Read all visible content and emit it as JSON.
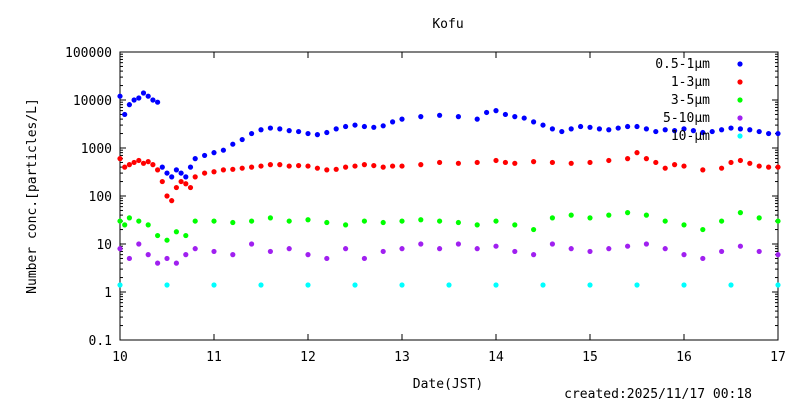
{
  "chart_data": {
    "type": "scatter",
    "title": "Kofu",
    "xlabel": "Date(JST)",
    "ylabel": "Number conc.[particles/L]",
    "x_ticks": [
      "10",
      "11",
      "12",
      "13",
      "14",
      "15",
      "16",
      "17"
    ],
    "y_ticks": [
      "0.1",
      "1",
      "10",
      "100",
      "1000",
      "10000",
      "100000"
    ],
    "xlim": [
      10,
      17
    ],
    "ylim": [
      0.1,
      100000
    ],
    "y_scale": "log",
    "grid": false,
    "legend_position": "top-right",
    "created": "created:2025/11/17 00:18",
    "series": [
      {
        "name": "0.5-1μm",
        "color": "#0000ff",
        "points": [
          [
            10.0,
            12000
          ],
          [
            10.05,
            5000
          ],
          [
            10.1,
            8000
          ],
          [
            10.15,
            10000
          ],
          [
            10.2,
            11000
          ],
          [
            10.25,
            14000
          ],
          [
            10.3,
            12000
          ],
          [
            10.35,
            10000
          ],
          [
            10.4,
            9000
          ],
          [
            10.45,
            400
          ],
          [
            10.5,
            300
          ],
          [
            10.55,
            250
          ],
          [
            10.6,
            350
          ],
          [
            10.65,
            300
          ],
          [
            10.7,
            250
          ],
          [
            10.75,
            400
          ],
          [
            10.8,
            600
          ],
          [
            10.9,
            700
          ],
          [
            11.0,
            800
          ],
          [
            11.1,
            900
          ],
          [
            11.2,
            1200
          ],
          [
            11.3,
            1500
          ],
          [
            11.4,
            2000
          ],
          [
            11.5,
            2400
          ],
          [
            11.6,
            2600
          ],
          [
            11.7,
            2500
          ],
          [
            11.8,
            2300
          ],
          [
            11.9,
            2200
          ],
          [
            12.0,
            2000
          ],
          [
            12.1,
            1900
          ],
          [
            12.2,
            2100
          ],
          [
            12.3,
            2500
          ],
          [
            12.4,
            2800
          ],
          [
            12.5,
            3000
          ],
          [
            12.6,
            2800
          ],
          [
            12.7,
            2700
          ],
          [
            12.8,
            2900
          ],
          [
            12.9,
            3500
          ],
          [
            13.0,
            4000
          ],
          [
            13.2,
            4500
          ],
          [
            13.4,
            4800
          ],
          [
            13.6,
            4500
          ],
          [
            13.8,
            4000
          ],
          [
            13.9,
            5500
          ],
          [
            14.0,
            6000
          ],
          [
            14.1,
            5000
          ],
          [
            14.2,
            4500
          ],
          [
            14.3,
            4200
          ],
          [
            14.4,
            3500
          ],
          [
            14.5,
            3000
          ],
          [
            14.6,
            2500
          ],
          [
            14.7,
            2200
          ],
          [
            14.8,
            2500
          ],
          [
            14.9,
            2800
          ],
          [
            15.0,
            2700
          ],
          [
            15.1,
            2500
          ],
          [
            15.2,
            2400
          ],
          [
            15.3,
            2600
          ],
          [
            15.4,
            2800
          ],
          [
            15.5,
            2800
          ],
          [
            15.6,
            2500
          ],
          [
            15.7,
            2200
          ],
          [
            15.8,
            2400
          ],
          [
            15.9,
            2300
          ],
          [
            16.0,
            2500
          ],
          [
            16.1,
            2300
          ],
          [
            16.2,
            2100
          ],
          [
            16.3,
            2200
          ],
          [
            16.4,
            2400
          ],
          [
            16.5,
            2600
          ],
          [
            16.6,
            2500
          ],
          [
            16.7,
            2400
          ],
          [
            16.8,
            2200
          ],
          [
            16.9,
            2000
          ],
          [
            17.0,
            2000
          ]
        ]
      },
      {
        "name": "1-3μm",
        "color": "#ff0000",
        "points": [
          [
            10.0,
            600
          ],
          [
            10.05,
            400
          ],
          [
            10.1,
            450
          ],
          [
            10.15,
            500
          ],
          [
            10.2,
            550
          ],
          [
            10.25,
            480
          ],
          [
            10.3,
            520
          ],
          [
            10.35,
            450
          ],
          [
            10.4,
            350
          ],
          [
            10.45,
            200
          ],
          [
            10.5,
            100
          ],
          [
            10.55,
            80
          ],
          [
            10.6,
            150
          ],
          [
            10.65,
            200
          ],
          [
            10.7,
            180
          ],
          [
            10.75,
            150
          ],
          [
            10.8,
            250
          ],
          [
            10.9,
            300
          ],
          [
            11.0,
            320
          ],
          [
            11.1,
            350
          ],
          [
            11.2,
            360
          ],
          [
            11.3,
            380
          ],
          [
            11.4,
            400
          ],
          [
            11.5,
            420
          ],
          [
            11.6,
            450
          ],
          [
            11.7,
            450
          ],
          [
            11.8,
            420
          ],
          [
            11.9,
            430
          ],
          [
            12.0,
            420
          ],
          [
            12.1,
            380
          ],
          [
            12.2,
            350
          ],
          [
            12.3,
            360
          ],
          [
            12.4,
            400
          ],
          [
            12.5,
            420
          ],
          [
            12.6,
            450
          ],
          [
            12.7,
            430
          ],
          [
            12.8,
            400
          ],
          [
            12.9,
            420
          ],
          [
            13.0,
            420
          ],
          [
            13.2,
            450
          ],
          [
            13.4,
            500
          ],
          [
            13.6,
            480
          ],
          [
            13.8,
            500
          ],
          [
            14.0,
            550
          ],
          [
            14.1,
            500
          ],
          [
            14.2,
            480
          ],
          [
            14.4,
            520
          ],
          [
            14.6,
            500
          ],
          [
            14.8,
            480
          ],
          [
            15.0,
            500
          ],
          [
            15.2,
            550
          ],
          [
            15.4,
            600
          ],
          [
            15.5,
            800
          ],
          [
            15.6,
            600
          ],
          [
            15.7,
            500
          ],
          [
            15.8,
            380
          ],
          [
            15.9,
            450
          ],
          [
            16.0,
            420
          ],
          [
            16.2,
            350
          ],
          [
            16.4,
            380
          ],
          [
            16.5,
            500
          ],
          [
            16.6,
            550
          ],
          [
            16.7,
            480
          ],
          [
            16.8,
            420
          ],
          [
            16.9,
            400
          ],
          [
            17.0,
            400
          ]
        ]
      },
      {
        "name": "3-5μm",
        "color": "#00ff00",
        "points": [
          [
            10.0,
            30
          ],
          [
            10.05,
            25
          ],
          [
            10.1,
            35
          ],
          [
            10.2,
            30
          ],
          [
            10.3,
            25
          ],
          [
            10.4,
            15
          ],
          [
            10.5,
            12
          ],
          [
            10.6,
            18
          ],
          [
            10.7,
            15
          ],
          [
            10.8,
            30
          ],
          [
            11.0,
            30
          ],
          [
            11.2,
            28
          ],
          [
            11.4,
            30
          ],
          [
            11.6,
            35
          ],
          [
            11.8,
            30
          ],
          [
            12.0,
            32
          ],
          [
            12.2,
            28
          ],
          [
            12.4,
            25
          ],
          [
            12.6,
            30
          ],
          [
            12.8,
            28
          ],
          [
            13.0,
            30
          ],
          [
            13.2,
            32
          ],
          [
            13.4,
            30
          ],
          [
            13.6,
            28
          ],
          [
            13.8,
            25
          ],
          [
            14.0,
            30
          ],
          [
            14.2,
            25
          ],
          [
            14.4,
            20
          ],
          [
            14.6,
            35
          ],
          [
            14.8,
            40
          ],
          [
            15.0,
            35
          ],
          [
            15.2,
            40
          ],
          [
            15.4,
            45
          ],
          [
            15.6,
            40
          ],
          [
            15.8,
            30
          ],
          [
            16.0,
            25
          ],
          [
            16.2,
            20
          ],
          [
            16.4,
            30
          ],
          [
            16.6,
            45
          ],
          [
            16.8,
            35
          ],
          [
            17.0,
            30
          ]
        ]
      },
      {
        "name": "5-10μm",
        "color": "#a020f0",
        "points": [
          [
            10.0,
            8
          ],
          [
            10.1,
            5
          ],
          [
            10.2,
            10
          ],
          [
            10.3,
            6
          ],
          [
            10.4,
            4
          ],
          [
            10.5,
            5
          ],
          [
            10.6,
            4
          ],
          [
            10.7,
            6
          ],
          [
            10.8,
            8
          ],
          [
            11.0,
            7
          ],
          [
            11.2,
            6
          ],
          [
            11.4,
            10
          ],
          [
            11.6,
            7
          ],
          [
            11.8,
            8
          ],
          [
            12.0,
            6
          ],
          [
            12.2,
            5
          ],
          [
            12.4,
            8
          ],
          [
            12.6,
            5
          ],
          [
            12.8,
            7
          ],
          [
            13.0,
            8
          ],
          [
            13.2,
            10
          ],
          [
            13.4,
            8
          ],
          [
            13.6,
            10
          ],
          [
            13.8,
            8
          ],
          [
            14.0,
            9
          ],
          [
            14.2,
            7
          ],
          [
            14.4,
            6
          ],
          [
            14.6,
            10
          ],
          [
            14.8,
            8
          ],
          [
            15.0,
            7
          ],
          [
            15.2,
            8
          ],
          [
            15.4,
            9
          ],
          [
            15.6,
            10
          ],
          [
            15.8,
            8
          ],
          [
            16.0,
            6
          ],
          [
            16.2,
            5
          ],
          [
            16.4,
            7
          ],
          [
            16.6,
            9
          ],
          [
            16.8,
            7
          ],
          [
            17.0,
            6
          ]
        ]
      },
      {
        "name": "10-μm",
        "color": "#00ffff",
        "points": [
          [
            10.0,
            1.4
          ],
          [
            10.5,
            1.4
          ],
          [
            11.0,
            1.4
          ],
          [
            11.5,
            1.4
          ],
          [
            12.0,
            1.4
          ],
          [
            12.5,
            1.4
          ],
          [
            13.0,
            1.4
          ],
          [
            13.5,
            1.4
          ],
          [
            14.0,
            1.4
          ],
          [
            14.5,
            1.4
          ],
          [
            15.0,
            1.4
          ],
          [
            15.5,
            1.4
          ],
          [
            16.0,
            1.4
          ],
          [
            16.5,
            1.4
          ],
          [
            17.0,
            1.4
          ]
        ]
      }
    ]
  }
}
